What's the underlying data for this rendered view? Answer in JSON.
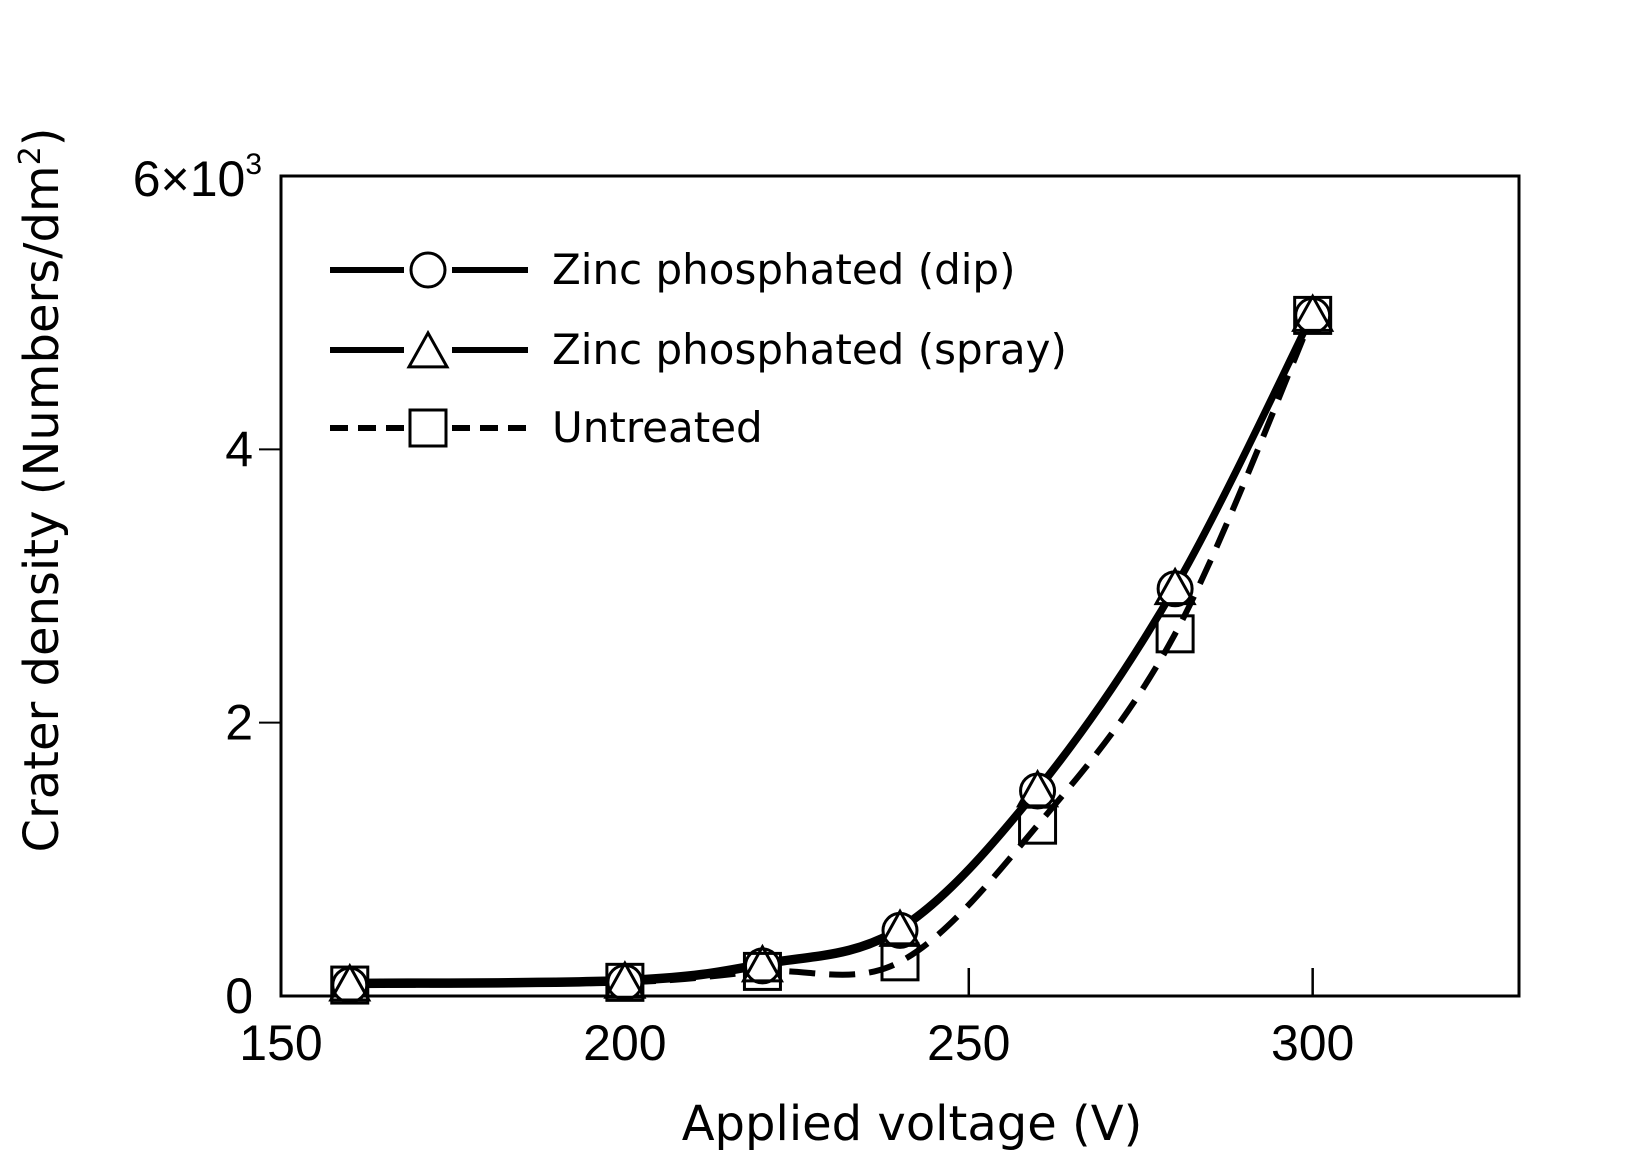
{
  "chart_data": {
    "type": "line",
    "title": "",
    "xlabel": "Applied voltage (V)",
    "ylabel": "Crater density (Numbers/dm²)",
    "ylabel_main": "Crater density (Numbers/dm",
    "ylabel_sup": "2",
    "ylabel_end": ")",
    "xlim": [
      150,
      330
    ],
    "ylim": [
      0,
      6000
    ],
    "x_ticks": [
      150,
      200,
      250,
      300
    ],
    "x_tick_labels": [
      "150",
      "200",
      "250",
      "300"
    ],
    "y_ticks": [
      0,
      2000,
      4000,
      6000
    ],
    "y_tick_labels": [
      "0",
      "2",
      "4",
      "6×10"
    ],
    "y_top_sup": "3",
    "grid": false,
    "legend_position": "top-left",
    "series": [
      {
        "name": "Zinc phosphated (dip)",
        "marker": "circle",
        "line": "solid",
        "x": [
          160,
          200,
          220,
          240,
          260,
          280,
          300
        ],
        "values": [
          80,
          100,
          220,
          480,
          1500,
          2980,
          4980
        ]
      },
      {
        "name": "Zinc phosphated (spray)",
        "marker": "triangle",
        "line": "solid",
        "x": [
          160,
          200,
          220,
          240,
          260,
          280,
          300
        ],
        "values": [
          80,
          100,
          220,
          480,
          1500,
          2980,
          4980
        ]
      },
      {
        "name": "Untreated",
        "marker": "square",
        "line": "dashed",
        "x": [
          160,
          200,
          220,
          240,
          260,
          280,
          300
        ],
        "values": [
          80,
          100,
          180,
          250,
          1250,
          2650,
          4980
        ]
      }
    ]
  }
}
